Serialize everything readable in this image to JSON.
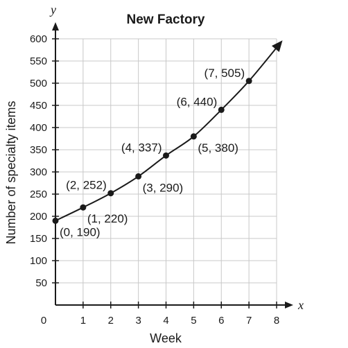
{
  "chart_data": {
    "type": "line",
    "title": "New Factory",
    "xlabel": "Week",
    "ylabel": "Number of specialty items",
    "x_var": "x",
    "y_var": "y",
    "xlim": [
      0,
      8
    ],
    "ylim": [
      0,
      600
    ],
    "x_ticks": [
      0,
      1,
      2,
      3,
      4,
      5,
      6,
      7,
      8
    ],
    "y_ticks": [
      50,
      100,
      150,
      200,
      250,
      300,
      350,
      400,
      450,
      500,
      550,
      600
    ],
    "grid": true,
    "legend": "none",
    "curve_extends_with_arrow": true,
    "points": [
      {
        "x": 0,
        "y": 190,
        "label": "(0, 190)",
        "label_side": "below-right"
      },
      {
        "x": 1,
        "y": 220,
        "label": "(1, 220)",
        "label_side": "below-right"
      },
      {
        "x": 2,
        "y": 252,
        "label": "(2, 252)",
        "label_side": "above-left"
      },
      {
        "x": 3,
        "y": 290,
        "label": "(3, 290)",
        "label_side": "below-right"
      },
      {
        "x": 4,
        "y": 337,
        "label": "(4, 337)",
        "label_side": "above-left"
      },
      {
        "x": 5,
        "y": 380,
        "label": "(5, 380)",
        "label_side": "below-right"
      },
      {
        "x": 6,
        "y": 440,
        "label": "(6, 440)",
        "label_side": "above-left"
      },
      {
        "x": 7,
        "y": 505,
        "label": "(7, 505)",
        "label_side": "above-left"
      }
    ]
  }
}
